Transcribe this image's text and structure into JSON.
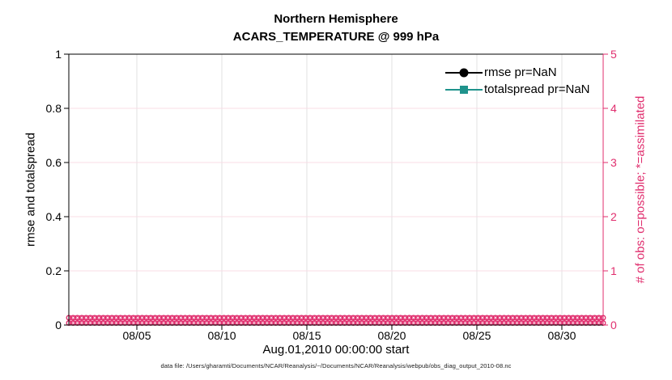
{
  "figure": {
    "title_line1": "Northern Hemisphere",
    "title_line2": "ACARS_TEMPERATURE @ 999 hPa",
    "xlabel": "Aug.01,2010 00:00:00 start",
    "left_axis_label": "rmse and totalspread",
    "right_axis_label": "# of obs: o=possible; *=assimilated",
    "caption": "data file: /Users/gharamti/Documents/NCAR/Reanalysis/~/Documents/NCAR/Reanalysis/webpub/obs_diag_output_2010-08.nc"
  },
  "legend": {
    "items": [
      {
        "label": "rmse pr=NaN",
        "color": "#000000",
        "marker": "filled-circle"
      },
      {
        "label": "totalspread pr=NaN",
        "color": "#1f938c",
        "marker": "filled-square"
      }
    ]
  },
  "colors": {
    "pink": "#e02d6d",
    "grid_pink": "#f8dce6",
    "grid_gray": "#e2e2e2",
    "teal": "#1f938c",
    "black": "#000000"
  },
  "chart_data": {
    "type": "line",
    "title": "Northern Hemisphere",
    "subtitle": "ACARS_TEMPERATURE @ 999 hPa",
    "xlabel": "Aug.01,2010 00:00:00 start",
    "x_range_days": [
      1,
      32.43
    ],
    "x_ticks": [
      {
        "day": 5,
        "label": "08/05"
      },
      {
        "day": 10,
        "label": "08/10"
      },
      {
        "day": 15,
        "label": "08/15"
      },
      {
        "day": 20,
        "label": "08/20"
      },
      {
        "day": 25,
        "label": "08/25"
      },
      {
        "day": 30,
        "label": "08/30"
      }
    ],
    "left_axis": {
      "label": "rmse and totalspread",
      "range": [
        0,
        1
      ],
      "tick_values": [
        0,
        0.2,
        0.4,
        0.6,
        0.8,
        1
      ],
      "tick_labels": [
        "0",
        "0.2",
        "0.4",
        "0.6",
        "0.8",
        "1"
      ]
    },
    "right_axis": {
      "label": "# of obs: o=possible; *=assimilated",
      "range": [
        0,
        5
      ],
      "tick_values": [
        0,
        1,
        2,
        3,
        4,
        5
      ],
      "tick_labels": [
        "0",
        "1",
        "2",
        "3",
        "4",
        "5"
      ]
    },
    "grid": true,
    "legend_position": "top-right-inside",
    "series": [
      {
        "name": "rmse pr=NaN",
        "axis": "left",
        "color": "#000000",
        "marker": "filled-circle",
        "values": null,
        "note": "pr=NaN — no curve drawn"
      },
      {
        "name": "totalspread pr=NaN",
        "axis": "left",
        "color": "#1f938c",
        "marker": "filled-square",
        "values": null,
        "note": "pr=NaN — no curve drawn"
      },
      {
        "name": "# of possible obs (o)",
        "axis": "right",
        "color": "#e02d6d",
        "marker": "o",
        "n_bins": 125,
        "constant_value": 0
      },
      {
        "name": "# of assimilated obs (*)",
        "axis": "right",
        "color": "#e02d6d",
        "marker": "*",
        "n_bins": 125,
        "constant_value": 0
      }
    ]
  }
}
